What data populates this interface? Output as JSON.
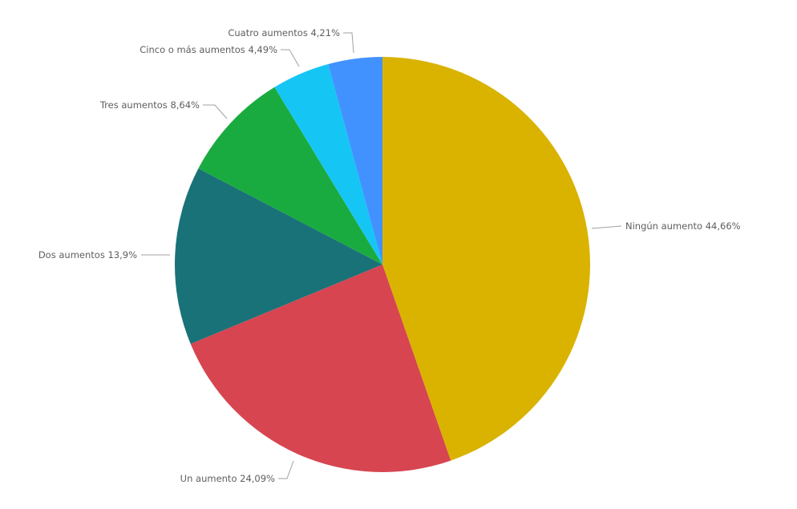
{
  "chart_data": {
    "type": "pie",
    "start_angle": "12 o'clock",
    "direction": "clockwise",
    "slices": [
      {
        "label": "Ningún aumento",
        "value": 44.66,
        "display": "Ningún aumento 44,66%",
        "color": "#D9B300"
      },
      {
        "label": "Un aumento",
        "value": 24.09,
        "display": "Un aumento 24,09%",
        "color": "#D64550"
      },
      {
        "label": "Dos aumentos",
        "value": 13.9,
        "display": "Dos aumentos 13,9%",
        "color": "#197278"
      },
      {
        "label": "Tres aumentos",
        "value": 8.64,
        "display": "Tres aumentos 8,64%",
        "color": "#1AAB40"
      },
      {
        "label": "Cinco o más aumentos",
        "value": 4.49,
        "display": "Cinco o más aumentos 4,49%",
        "color": "#15C6F4"
      },
      {
        "label": "Cuatro aumentos",
        "value": 4.21,
        "display": "Cuatro aumentos 4,21%",
        "color": "#4192FF"
      }
    ],
    "legend": "none",
    "data_labels": "outside with leader lines"
  }
}
